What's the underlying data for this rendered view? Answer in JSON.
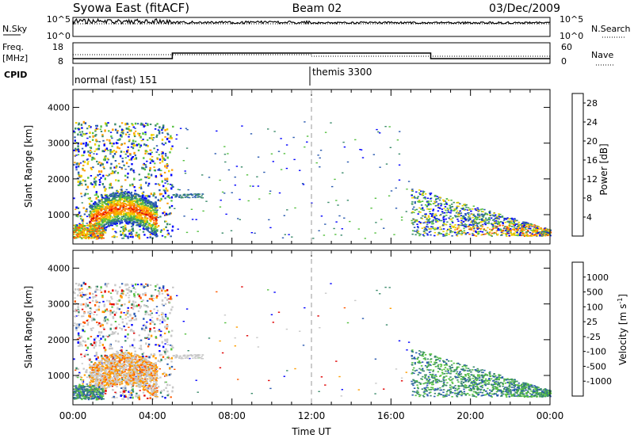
{
  "header": {
    "title": "Syowa East (fitACF)",
    "beam": "Beam 02",
    "date": "03/Dec/2009"
  },
  "noise_panel": {
    "left_label": "N.Sky",
    "right_label": "N.Search",
    "left_ticks": [
      "10^5",
      "10^0"
    ],
    "right_ticks": [
      "10^5",
      "10^0"
    ]
  },
  "freq_panel": {
    "left_label_top": "Freq.",
    "left_label_bottom": "[MHz]",
    "right_label": "Nave",
    "left_ticks": [
      "18",
      "8"
    ],
    "right_ticks": [
      "60",
      "0"
    ]
  },
  "cpid": {
    "label": "CPID",
    "modes": [
      "normal (fast) 151",
      "themis 3300"
    ]
  },
  "colors": {
    "power": [
      "#0000ff",
      "#2a5ab0",
      "#3a8a6a",
      "#55c040",
      "#f0d000",
      "#ff9d00",
      "#ff5a00",
      "#e00000"
    ],
    "velocity": [
      "#e00000",
      "#ff5a00",
      "#ff9d00",
      "#c8c8c8",
      "#c8c8c8",
      "#55c040",
      "#3a8a6a",
      "#2a5ab0",
      "#0000ff"
    ]
  },
  "chart_data": [
    {
      "type": "heatmap",
      "panel": "power",
      "xlabel": "Time UT",
      "ylabel": "Slant Range [km]",
      "ylim": [
        180,
        4500
      ],
      "xlim_hours": [
        0,
        24
      ],
      "y_ticks": [
        "1000",
        "2000",
        "3000",
        "4000"
      ],
      "x_ticks": [
        "00:00",
        "04:00",
        "08:00",
        "12:00",
        "16:00",
        "20:00",
        "00:00"
      ],
      "colorbar": {
        "label": "Power [dB]",
        "ticks": [
          "4",
          "8",
          "12",
          "16",
          "20",
          "24",
          "28"
        ],
        "range": [
          0,
          30
        ]
      },
      "regions": [
        {
          "hours": [
            0,
            5
          ],
          "ranges_km": [
            300,
            3500
          ],
          "density": 0.25,
          "note": "scattered echoes"
        },
        {
          "hours": [
            0.8,
            4.2
          ],
          "ranges_km": [
            400,
            1500
          ],
          "peak_power_db": 28
        },
        {
          "hours": [
            17,
            24
          ],
          "ranges_km": [
            400,
            1800
          ],
          "peak_power_db": 24
        }
      ]
    },
    {
      "type": "heatmap",
      "panel": "velocity",
      "xlabel": "Time UT",
      "ylabel": "Slant Range [km]",
      "ylim": [
        180,
        4500
      ],
      "xlim_hours": [
        0,
        24
      ],
      "y_ticks": [
        "1000",
        "2000",
        "3000",
        "4000"
      ],
      "x_ticks": [
        "00:00",
        "04:00",
        "08:00",
        "12:00",
        "16:00",
        "20:00",
        "00:00"
      ],
      "colorbar": {
        "label": "Velocity [m s",
        "label_sup": "-1",
        "label_end": "]",
        "ticks": [
          "1000",
          "500",
          "100",
          "25",
          "-25",
          "-100",
          "-500",
          "-1000"
        ]
      },
      "regions": [
        {
          "hours": [
            0,
            5
          ],
          "ranges_km": [
            300,
            1500
          ],
          "dominant": "ground scatter (grey) and negative velocities"
        },
        {
          "hours": [
            17,
            24
          ],
          "ranges_km": [
            400,
            1700
          ],
          "dominant": "positive velocities 25-500 m/s"
        }
      ]
    }
  ]
}
